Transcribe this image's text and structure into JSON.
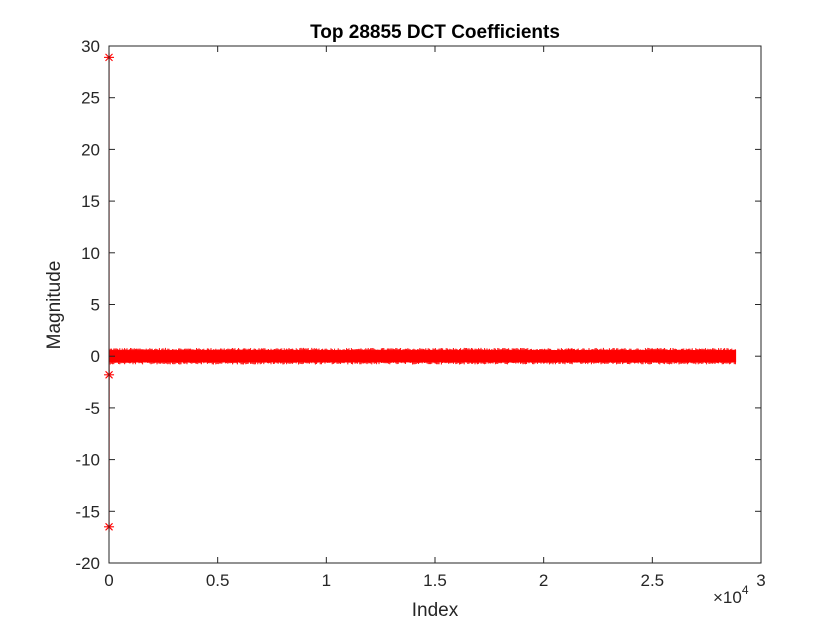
{
  "chart_data": {
    "type": "line",
    "title": "Top 28855 DCT Coefficients",
    "xlabel": "Index",
    "ylabel": "Magnitude",
    "xlim": [
      0,
      30000
    ],
    "ylim": [
      -20,
      30
    ],
    "x_exponent_label": "×10",
    "x_exponent_power": "4",
    "x_ticks": [
      0,
      5000,
      10000,
      15000,
      20000,
      25000,
      30000
    ],
    "x_tick_labels": [
      "0",
      "0.5",
      "1",
      "1.5",
      "2",
      "2.5",
      "3"
    ],
    "y_ticks": [
      -20,
      -15,
      -10,
      -5,
      0,
      5,
      10,
      15,
      20,
      25,
      30
    ],
    "y_tick_labels": [
      "-20",
      "-15",
      "-10",
      "-5",
      "0",
      "5",
      "10",
      "15",
      "20",
      "25",
      "30"
    ],
    "grid": false,
    "marker": "asterisk",
    "series": [
      {
        "color": "#ff0000",
        "x": [
          1,
          2,
          3
        ],
        "y": [
          28.9,
          -16.5,
          -1.8
        ],
        "dense_band": {
          "x_range": [
            1,
            28855
          ],
          "y_range": [
            -0.3,
            0.3
          ],
          "bursts": [
            {
              "x_range": [
                7000,
                7600
              ],
              "y_range": [
                -0.5,
                0.5
              ]
            },
            {
              "x_range": [
                14000,
                14700
              ],
              "y_range": [
                -0.55,
                0.6
              ]
            },
            {
              "x_range": [
                21000,
                21800
              ],
              "y_range": [
                -0.7,
                0.85
              ]
            },
            {
              "x_range": [
                27500,
                28855
              ],
              "y_range": [
                -0.4,
                0.4
              ]
            }
          ]
        }
      }
    ]
  }
}
